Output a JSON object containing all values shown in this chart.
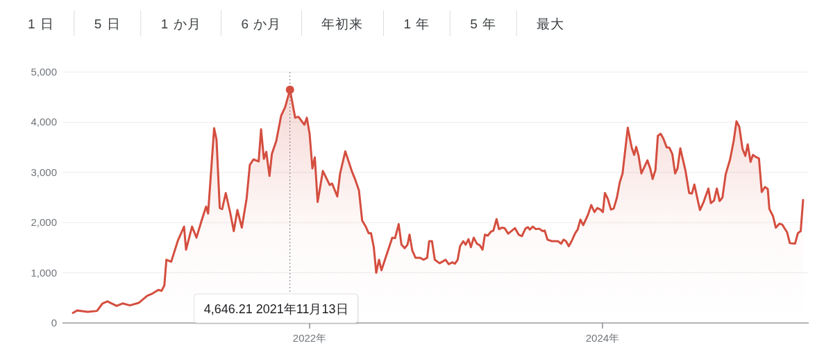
{
  "chart_data": {
    "type": "area",
    "annotations": [
      "1 日",
      "5 日",
      "1 か月",
      "6 か月",
      "年初来",
      "1 年",
      "5 年",
      "最大",
      "4,646.21  2021年11月13日"
    ],
    "ref_lines": [
      {
        "axis": "x",
        "value": "2021-11-13",
        "color": "#757575",
        "line_style": "dotted"
      }
    ],
    "xlim": [
      "2020-04-25",
      "2025-05-29"
    ],
    "xticks": [
      {
        "value": "2022-01-01",
        "label": "2022年"
      },
      {
        "value": "2024-01-01",
        "label": "2024年"
      }
    ],
    "ylim": [
      0,
      5000
    ],
    "yticks": [
      0,
      {
        "value": 1000,
        "label": "1,000"
      },
      {
        "value": 2000,
        "label": "2,000"
      },
      {
        "value": 3000,
        "label": "3,000"
      },
      {
        "value": 4000,
        "label": "4,000"
      },
      {
        "value": 5000,
        "label": "5,000"
      }
    ],
    "grid": "y",
    "series": [
      {
        "color": "#d44e3f",
        "x": [
          "2020-05-21",
          "2020-06-01",
          "2020-06-27",
          "2020-07-20",
          "2020-08-03",
          "2020-08-15",
          "2020-09-07",
          "2020-09-22",
          "2020-10-10",
          "2020-11-01",
          "2020-11-22",
          "2020-12-06",
          "2020-12-20",
          "2020-12-28",
          "2021-01-04",
          "2021-01-09",
          "2021-01-21",
          "2021-02-07",
          "2021-02-22",
          "2021-02-27",
          "2021-03-14",
          "2021-03-25",
          "2021-04-06",
          "2021-04-18",
          "2021-04-23",
          "2021-05-08",
          "2021-05-14",
          "2021-05-22",
          "2021-05-28",
          "2021-06-06",
          "2021-06-17",
          "2021-06-26",
          "2021-07-05",
          "2021-07-16",
          "2021-07-28",
          "2021-08-05",
          "2021-08-14",
          "2021-08-27",
          "2021-09-02",
          "2021-09-09",
          "2021-09-15",
          "2021-09-23",
          "2021-09-29",
          "2021-10-10",
          "2021-10-22",
          "2021-11-01",
          "2021-11-13",
          "2021-11-26",
          "2021-12-04",
          "2021-12-19",
          "2021-12-25",
          "2022-01-01",
          "2022-01-08",
          "2022-01-14",
          "2022-01-21",
          "2022-02-03",
          "2022-02-20",
          "2022-02-26",
          "2022-03-11",
          "2022-03-18",
          "2022-03-31",
          "2022-04-16",
          "2022-04-25",
          "2022-05-04",
          "2022-05-12",
          "2022-05-21",
          "2022-05-28",
          "2022-06-03",
          "2022-06-10",
          "2022-06-16",
          "2022-06-23",
          "2022-06-29",
          "2022-07-26",
          "2022-08-02",
          "2022-08-11",
          "2022-08-18",
          "2022-08-26",
          "2022-09-02",
          "2022-09-07",
          "2022-09-14",
          "2022-09-22",
          "2022-10-03",
          "2022-10-12",
          "2022-10-21",
          "2022-10-26",
          "2022-11-02",
          "2022-11-09",
          "2022-11-21",
          "2022-12-06",
          "2022-12-14",
          "2022-12-23",
          "2022-12-29",
          "2023-01-05",
          "2023-01-11",
          "2023-01-19",
          "2023-01-25",
          "2023-02-01",
          "2023-02-07",
          "2023-02-14",
          "2023-02-22",
          "2023-03-01",
          "2023-03-08",
          "2023-03-14",
          "2023-03-21",
          "2023-03-29",
          "2023-04-04",
          "2023-04-12",
          "2023-04-18",
          "2023-04-26",
          "2023-05-02",
          "2023-05-11",
          "2023-05-28",
          "2023-06-06",
          "2023-06-14",
          "2023-06-23",
          "2023-06-29",
          "2023-07-04",
          "2023-07-11",
          "2023-07-19",
          "2023-07-27",
          "2023-08-05",
          "2023-08-10",
          "2023-08-17",
          "2023-08-28",
          "2023-09-12",
          "2023-09-20",
          "2023-09-26",
          "2023-10-02",
          "2023-10-09",
          "2023-10-16",
          "2023-10-25",
          "2023-10-31",
          "2023-11-07",
          "2023-11-14",
          "2023-11-26",
          "2023-12-04",
          "2023-12-12",
          "2023-12-19",
          "2023-12-27",
          "2024-01-02",
          "2024-01-07",
          "2024-01-14",
          "2024-01-22",
          "2024-01-29",
          "2024-02-06",
          "2024-02-13",
          "2024-02-20",
          "2024-03-04",
          "2024-03-14",
          "2024-03-20",
          "2024-03-25",
          "2024-03-31",
          "2024-04-07",
          "2024-04-15",
          "2024-04-22",
          "2024-04-29",
          "2024-05-05",
          "2024-05-12",
          "2024-05-18",
          "2024-05-25",
          "2024-06-01",
          "2024-06-09",
          "2024-06-16",
          "2024-06-23",
          "2024-06-30",
          "2024-07-06",
          "2024-07-13",
          "2024-07-26",
          "2024-08-04",
          "2024-08-11",
          "2024-08-17",
          "2024-08-24",
          "2024-08-31",
          "2024-09-09",
          "2024-09-21",
          "2024-09-27",
          "2024-10-05",
          "2024-10-12",
          "2024-10-19",
          "2024-10-26",
          "2024-11-03",
          "2024-11-14",
          "2024-11-23",
          "2024-11-30",
          "2024-12-07",
          "2024-12-15",
          "2024-12-22",
          "2024-12-28",
          "2025-01-04",
          "2025-01-10",
          "2025-01-17",
          "2025-01-25",
          "2025-02-01",
          "2025-02-09",
          "2025-02-16",
          "2025-02-20",
          "2025-03-01",
          "2025-03-08",
          "2025-03-17",
          "2025-03-24",
          "2025-04-05",
          "2025-04-12",
          "2025-04-25",
          "2025-05-02",
          "2025-05-09",
          "2025-05-15"
        ],
        "values": [
          200,
          250,
          220,
          240,
          390,
          430,
          340,
          390,
          350,
          400,
          540,
          590,
          660,
          640,
          750,
          1260,
          1220,
          1650,
          1920,
          1460,
          1920,
          1700,
          2020,
          2320,
          2180,
          3880,
          3650,
          2290,
          2270,
          2590,
          2200,
          1830,
          2250,
          1900,
          2480,
          3150,
          3260,
          3220,
          3860,
          3270,
          3410,
          2930,
          3370,
          3630,
          4130,
          4300,
          4646.21,
          4090,
          4110,
          3950,
          4090,
          3770,
          3080,
          3300,
          2410,
          3030,
          2750,
          2780,
          2520,
          2980,
          3420,
          3030,
          2850,
          2640,
          2040,
          1920,
          1790,
          1790,
          1510,
          1000,
          1260,
          1050,
          1700,
          1690,
          1970,
          1560,
          1490,
          1560,
          1760,
          1440,
          1300,
          1300,
          1260,
          1300,
          1630,
          1630,
          1260,
          1190,
          1260,
          1170,
          1210,
          1180,
          1260,
          1530,
          1630,
          1560,
          1670,
          1510,
          1700,
          1580,
          1550,
          1460,
          1760,
          1740,
          1820,
          1840,
          2070,
          1870,
          1900,
          1890,
          1780,
          1890,
          1760,
          1730,
          1880,
          1910,
          1860,
          1920,
          1870,
          1880,
          1830,
          1840,
          1660,
          1630,
          1630,
          1580,
          1660,
          1630,
          1530,
          1630,
          1790,
          1860,
          2060,
          1950,
          2160,
          2350,
          2210,
          2290,
          2260,
          2210,
          2590,
          2480,
          2260,
          2280,
          2500,
          2800,
          2980,
          3890,
          3490,
          3350,
          3510,
          3330,
          2980,
          3120,
          3240,
          3080,
          2870,
          3050,
          3730,
          3770,
          3670,
          3500,
          3490,
          3370,
          2980,
          3080,
          3480,
          3030,
          2590,
          2580,
          2760,
          2500,
          2250,
          2410,
          2680,
          2390,
          2440,
          2680,
          2430,
          2500,
          2960,
          3260,
          3630,
          4020,
          3910,
          3470,
          3330,
          3560,
          3210,
          3350,
          3310,
          3280,
          2610,
          2710,
          2670,
          2270,
          2130,
          1900,
          1980,
          1960,
          1810,
          1590,
          1580,
          1790,
          1830,
          2450
        ]
      }
    ]
  }
}
